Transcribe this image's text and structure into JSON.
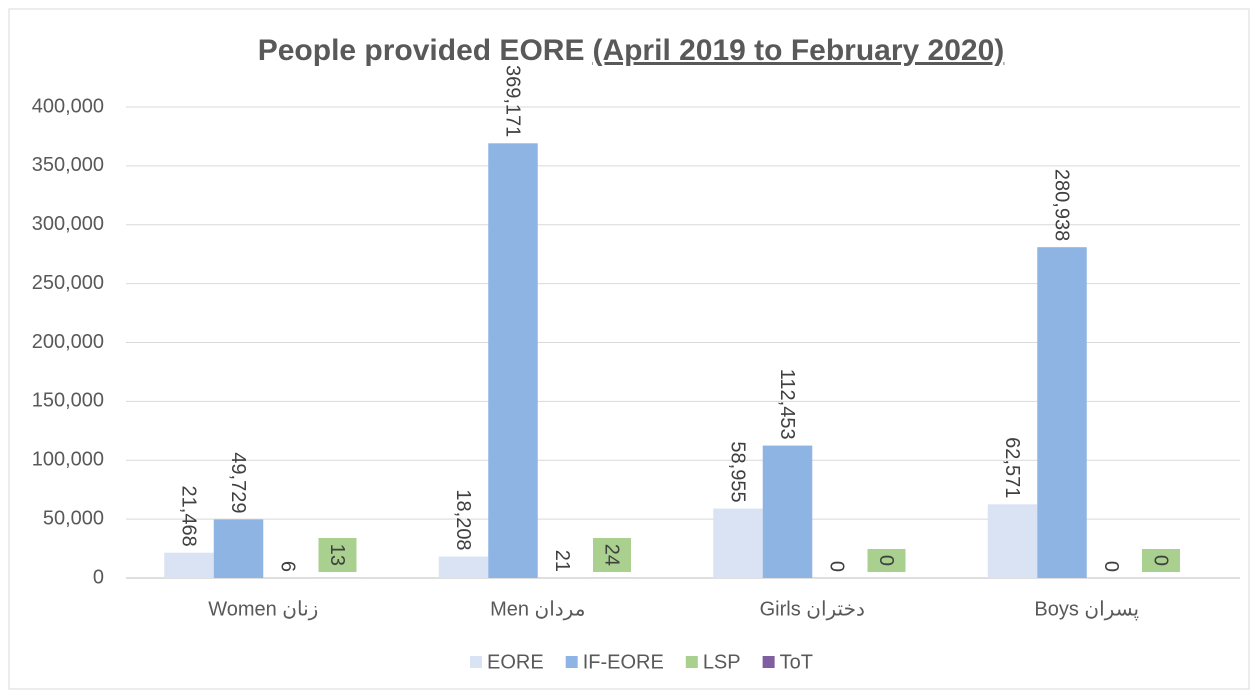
{
  "chart_data": {
    "type": "bar",
    "title_parts": [
      "People provided EORE",
      "(April 2019 to February 2020)"
    ],
    "categories": [
      "Women زنان",
      "Men مردان",
      "Girls دختران",
      "Boys پسران"
    ],
    "series": [
      {
        "name": "EORE",
        "color": "#dae3f3",
        "values": [
          21468,
          18208,
          58955,
          62571
        ],
        "value_labels": [
          "21,468",
          "18,208",
          "58,955",
          "62,571"
        ]
      },
      {
        "name": "IF-EORE",
        "color": "#8eb4e3",
        "values": [
          49729,
          369171,
          112453,
          280938
        ],
        "value_labels": [
          "49,729",
          "369,171",
          "112,453",
          "280,938"
        ]
      },
      {
        "name": "LSP",
        "color": "#a9d08e",
        "values": [
          6,
          21,
          0,
          0
        ],
        "value_labels": [
          "6",
          "21",
          "0",
          "0"
        ]
      },
      {
        "name": "ToT",
        "color": "#7f5fa0",
        "values": [
          13,
          24,
          0,
          0
        ],
        "value_labels": [
          "13",
          "24",
          "0",
          "0"
        ],
        "label_fill": "#a9d08e"
      }
    ],
    "ylim": [
      0,
      400000
    ],
    "yticks": [
      0,
      {
        "value": 50000,
        "label": "50,000"
      },
      {
        "value": 100000,
        "label": "100,000"
      },
      {
        "value": 150000,
        "label": "150,000"
      },
      {
        "value": 200000,
        "label": "200,000"
      },
      {
        "value": 250000,
        "label": "250,000"
      },
      {
        "value": 300000,
        "label": "300,000"
      },
      {
        "value": 350000,
        "label": "350,000"
      },
      {
        "value": 400000,
        "label": "400,000"
      }
    ],
    "grid": true,
    "legend": "bottom"
  }
}
